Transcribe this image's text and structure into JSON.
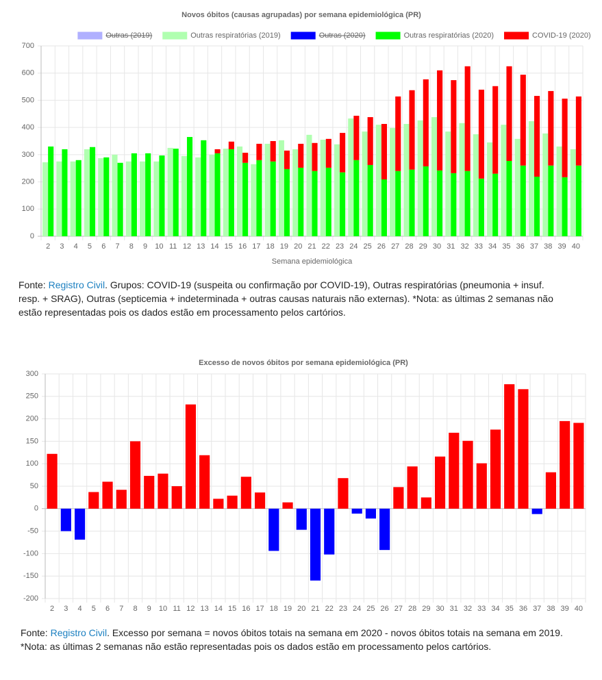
{
  "chart_data": [
    {
      "type": "bar",
      "title": "Novos óbitos (causas agrupadas) por semana epidemiológica (PR)",
      "xlabel": "Semana epidemiológica",
      "categories": [
        "2",
        "3",
        "4",
        "5",
        "6",
        "7",
        "8",
        "9",
        "10",
        "11",
        "12",
        "13",
        "14",
        "15",
        "16",
        "17",
        "18",
        "19",
        "20",
        "21",
        "22",
        "23",
        "24",
        "25",
        "26",
        "27",
        "28",
        "29",
        "30",
        "31",
        "32",
        "33",
        "34",
        "35",
        "36",
        "37",
        "38",
        "39",
        "40"
      ],
      "series": [
        {
          "name": "Outras (2019)",
          "color": "#b0b0ff",
          "stack": "2019",
          "hidden": true
        },
        {
          "name": "Outras respiratórias (2019)",
          "color": "#b0ffb0",
          "stack": "2019",
          "values": [
            272,
            275,
            275,
            320,
            287,
            300,
            275,
            275,
            275,
            325,
            295,
            290,
            300,
            322,
            330,
            265,
            340,
            353,
            320,
            373,
            355,
            338,
            433,
            385,
            410,
            398,
            413,
            426,
            438,
            385,
            416,
            375,
            345,
            410,
            358,
            423,
            378,
            330,
            320
          ]
        },
        {
          "name": "Outras (2020)",
          "color": "#0000ff",
          "stack": "2020",
          "hidden": true
        },
        {
          "name": "Outras respiratórias (2020)",
          "color": "#00ff00",
          "stack": "2020",
          "values": [
            330,
            320,
            280,
            328,
            290,
            270,
            305,
            305,
            297,
            322,
            365,
            353,
            305,
            320,
            270,
            280,
            275,
            247,
            252,
            240,
            252,
            235,
            280,
            262,
            209,
            240,
            245,
            257,
            242,
            232,
            240,
            212,
            230,
            277,
            260,
            219,
            260,
            217,
            260
          ]
        },
        {
          "name": "COVID-19 (2020)",
          "color": "#ff0000",
          "stack": "2020",
          "values": [
            0,
            0,
            0,
            0,
            0,
            0,
            0,
            0,
            0,
            0,
            0,
            0,
            15,
            28,
            37,
            60,
            75,
            68,
            88,
            103,
            106,
            145,
            163,
            176,
            204,
            274,
            292,
            320,
            368,
            342,
            385,
            327,
            322,
            348,
            334,
            297,
            274,
            289,
            254
          ]
        }
      ],
      "ylim": [
        0,
        700
      ],
      "yticks": [
        0,
        100,
        200,
        300,
        400,
        500,
        600,
        700
      ],
      "grid": true,
      "legend": "top"
    },
    {
      "type": "bar",
      "title": "Excesso de novos óbitos por semana epidemiológica (PR)",
      "categories": [
        "2",
        "3",
        "4",
        "5",
        "6",
        "7",
        "8",
        "9",
        "10",
        "11",
        "12",
        "13",
        "14",
        "15",
        "16",
        "17",
        "18",
        "19",
        "20",
        "21",
        "22",
        "23",
        "24",
        "25",
        "26",
        "27",
        "28",
        "29",
        "30",
        "31",
        "32",
        "33",
        "34",
        "35",
        "36",
        "37",
        "38",
        "39",
        "40"
      ],
      "values": [
        122,
        -50,
        -69,
        37,
        60,
        42,
        150,
        73,
        78,
        50,
        232,
        119,
        22,
        29,
        71,
        36,
        -94,
        14,
        -47,
        -160,
        -102,
        68,
        -11,
        -22,
        -92,
        48,
        94,
        25,
        116,
        169,
        151,
        101,
        176,
        277,
        266,
        -12,
        81,
        195,
        191
      ],
      "color": "#ff0000",
      "negative_color": "#0000ff",
      "ylim": [
        -200,
        300
      ],
      "yticks": [
        -200,
        -150,
        -100,
        -50,
        0,
        50,
        100,
        150,
        200,
        250,
        300
      ],
      "grid": true
    }
  ],
  "captions": [
    {
      "prefix": "Fonte:",
      "link": "Registro Civil",
      "text": ". Grupos: COVID-19 (suspeita ou confirmação por COVID-19), Outras respiratórias (pneumonia + insuf. resp. + SRAG), Outras (septicemia + indeterminada + outras causas naturais não externas). *Nota: as últimas 2 semanas não estão representadas pois os dados estão em processamento pelos cartórios."
    },
    {
      "prefix": "Fonte:",
      "link": "Registro Civil",
      "text": ". Excesso por semana = novos óbitos totais na semana em 2020 - novos óbitos totais na semana em 2019. *Nota: as últimas 2 semanas não estão representadas pois os dados estão em processamento pelos cartórios."
    }
  ]
}
